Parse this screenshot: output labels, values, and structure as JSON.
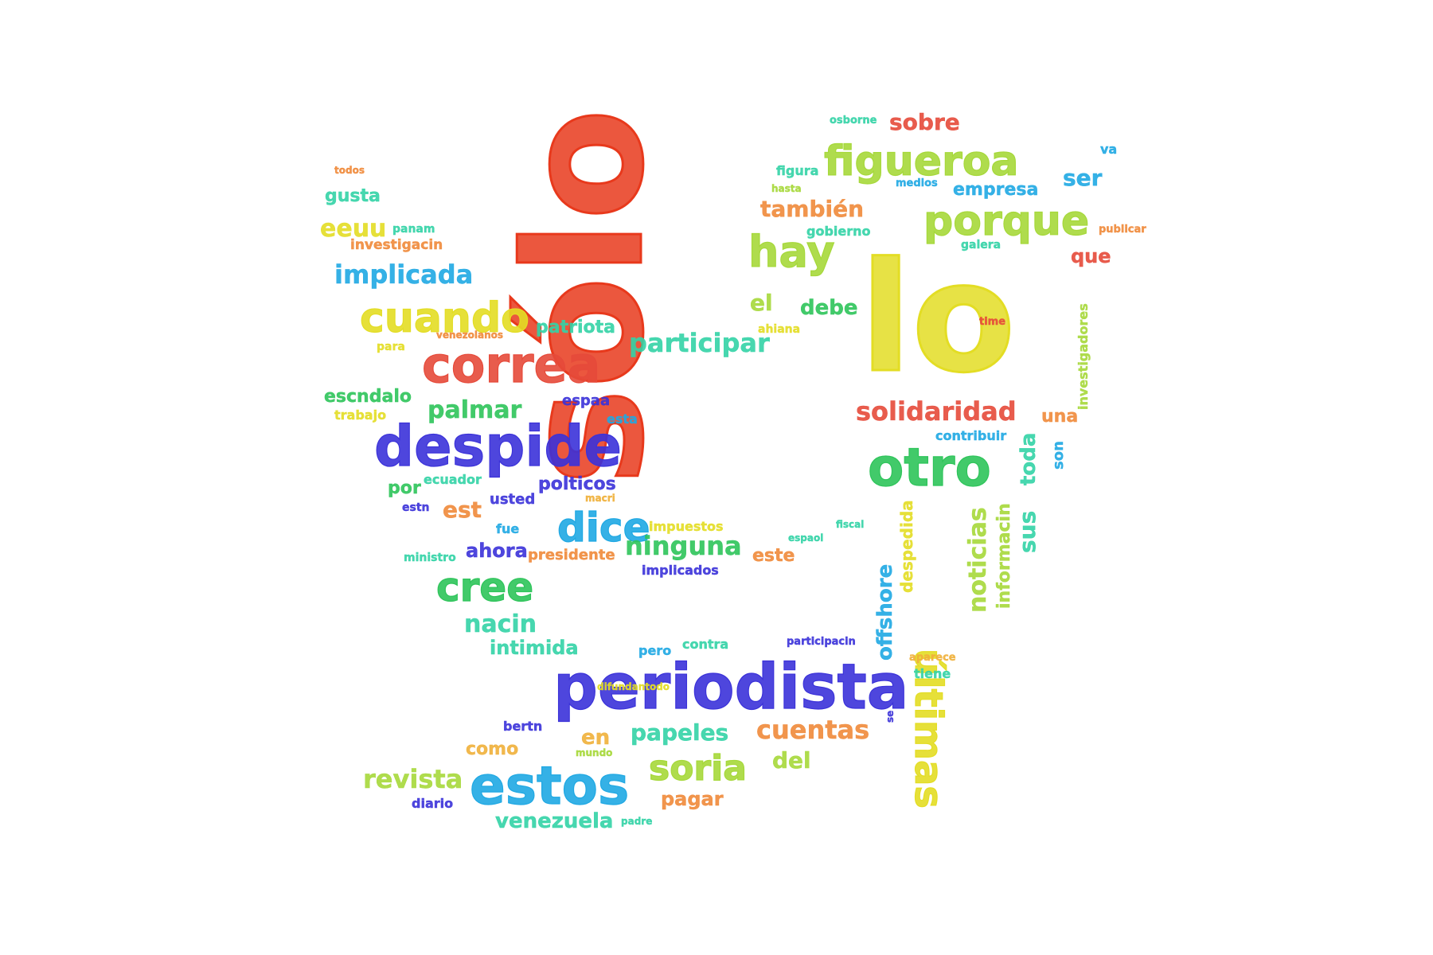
{
  "cloud": {
    "words": [
      {
        "text": "sólo",
        "color": "#e8391c"
      },
      {
        "text": "lo",
        "color": "#e3dd24"
      },
      {
        "text": "periodista",
        "color": "#3b32d9"
      },
      {
        "text": "despide",
        "color": "#3b32d9"
      },
      {
        "text": "correa",
        "color": "#e64a3a"
      },
      {
        "text": "estos",
        "color": "#1fa8e3"
      },
      {
        "text": "otro",
        "color": "#2ec45a"
      },
      {
        "text": "figueroa",
        "color": "#a6d83a"
      },
      {
        "text": "porque",
        "color": "#a6d83a"
      },
      {
        "text": "cuando",
        "color": "#e3dd24"
      },
      {
        "text": "hay",
        "color": "#a6d83a"
      },
      {
        "text": "cree",
        "color": "#2ec45a"
      },
      {
        "text": "dice",
        "color": "#1fa8e3"
      },
      {
        "text": "soria",
        "color": "#a6d83a"
      },
      {
        "text": "últimas",
        "color": "#e3dd24"
      },
      {
        "text": "solidaridad",
        "color": "#e64a3a"
      },
      {
        "text": "participar",
        "color": "#33d3a6"
      },
      {
        "text": "implicada",
        "color": "#1fa8e3"
      },
      {
        "text": "ninguna",
        "color": "#2ec45a"
      },
      {
        "text": "palmar",
        "color": "#2ec45a"
      },
      {
        "text": "cuentas",
        "color": "#f08a3a"
      },
      {
        "text": "papeles",
        "color": "#33d3a6"
      },
      {
        "text": "revista",
        "color": "#a6d83a"
      },
      {
        "text": "venezuela",
        "color": "#33d3a6"
      },
      {
        "text": "nacin",
        "color": "#33d3a6"
      },
      {
        "text": "intimida",
        "color": "#33d3a6"
      },
      {
        "text": "también",
        "color": "#f08a3a"
      },
      {
        "text": "sobre",
        "color": "#e64a3a"
      },
      {
        "text": "empresa",
        "color": "#1fa8e3"
      },
      {
        "text": "ser",
        "color": "#1fa8e3"
      },
      {
        "text": "que",
        "color": "#e64a3a"
      },
      {
        "text": "el",
        "color": "#a6d83a"
      },
      {
        "text": "debe",
        "color": "#2ec45a"
      },
      {
        "text": "eeuu",
        "color": "#e3dd24"
      },
      {
        "text": "gusta",
        "color": "#33d3a6"
      },
      {
        "text": "patriota",
        "color": "#33d3a6"
      },
      {
        "text": "escndalo",
        "color": "#2ec45a"
      },
      {
        "text": "pagar",
        "color": "#f08a3a"
      },
      {
        "text": "como",
        "color": "#f0b03a"
      },
      {
        "text": "en",
        "color": "#f0b03a"
      },
      {
        "text": "del",
        "color": "#a6d83a"
      },
      {
        "text": "est",
        "color": "#f08a3a"
      },
      {
        "text": "ahora",
        "color": "#3b32d9"
      },
      {
        "text": "este",
        "color": "#f08a3a"
      },
      {
        "text": "offshore",
        "color": "#1fa8e3"
      },
      {
        "text": "noticias",
        "color": "#a6d83a"
      },
      {
        "text": "toda",
        "color": "#33d3a6"
      },
      {
        "text": "sus",
        "color": "#33d3a6"
      },
      {
        "text": "informacin",
        "color": "#a6d83a"
      },
      {
        "text": "despedida",
        "color": "#e3dd24"
      },
      {
        "text": "investigadores",
        "color": "#a6d83a"
      },
      {
        "text": "son",
        "color": "#1fa8e3"
      },
      {
        "text": "una",
        "color": "#f08a3a"
      },
      {
        "text": "polticos",
        "color": "#3b32d9"
      },
      {
        "text": "por",
        "color": "#2ec45a"
      },
      {
        "text": "ecuador",
        "color": "#33d3a6"
      },
      {
        "text": "usted",
        "color": "#3b32d9"
      },
      {
        "text": "espaa",
        "color": "#3b32d9"
      },
      {
        "text": "esta",
        "color": "#1fa8e3"
      },
      {
        "text": "presidente",
        "color": "#f08a3a"
      },
      {
        "text": "implicados",
        "color": "#3b32d9"
      },
      {
        "text": "impuestos",
        "color": "#e3dd24"
      },
      {
        "text": "contribuir",
        "color": "#1fa8e3"
      },
      {
        "text": "investigacin",
        "color": "#f08a3a"
      },
      {
        "text": "figura",
        "color": "#33d3a6"
      },
      {
        "text": "gobierno",
        "color": "#33d3a6"
      },
      {
        "text": "galera",
        "color": "#33d3a6"
      },
      {
        "text": "trabajo",
        "color": "#e3dd24"
      },
      {
        "text": "para",
        "color": "#e3dd24"
      },
      {
        "text": "ahiana",
        "color": "#e3dd24"
      },
      {
        "text": "contra",
        "color": "#33d3a6"
      },
      {
        "text": "participacin",
        "color": "#3b32d9"
      },
      {
        "text": "tiene",
        "color": "#33d3a6"
      },
      {
        "text": "aparece",
        "color": "#f0b03a"
      },
      {
        "text": "pero",
        "color": "#1fa8e3"
      },
      {
        "text": "bertn",
        "color": "#3b32d9"
      },
      {
        "text": "diario",
        "color": "#3b32d9"
      },
      {
        "text": "fue",
        "color": "#1fa8e3"
      },
      {
        "text": "estn",
        "color": "#3b32d9"
      },
      {
        "text": "ministro",
        "color": "#33d3a6"
      },
      {
        "text": "osborne",
        "color": "#33d3a6"
      },
      {
        "text": "todos",
        "color": "#f08a3a"
      },
      {
        "text": "panam",
        "color": "#33d3a6"
      },
      {
        "text": "hasta",
        "color": "#a6d83a"
      },
      {
        "text": "medios",
        "color": "#1fa8e3"
      },
      {
        "text": "va",
        "color": "#1fa8e3"
      },
      {
        "text": "publicar",
        "color": "#f08a3a"
      },
      {
        "text": "time",
        "color": "#e64a3a"
      },
      {
        "text": "venezolanos",
        "color": "#f08a3a"
      },
      {
        "text": "macri",
        "color": "#f0b03a"
      },
      {
        "text": "espaol",
        "color": "#33d3a6"
      },
      {
        "text": "fiscal",
        "color": "#33d3a6"
      },
      {
        "text": "difundantodo",
        "color": "#e3dd24"
      },
      {
        "text": "mundo",
        "color": "#a6d83a"
      },
      {
        "text": "padre",
        "color": "#33d3a6"
      },
      {
        "text": "se",
        "color": "#3b32d9"
      }
    ]
  }
}
